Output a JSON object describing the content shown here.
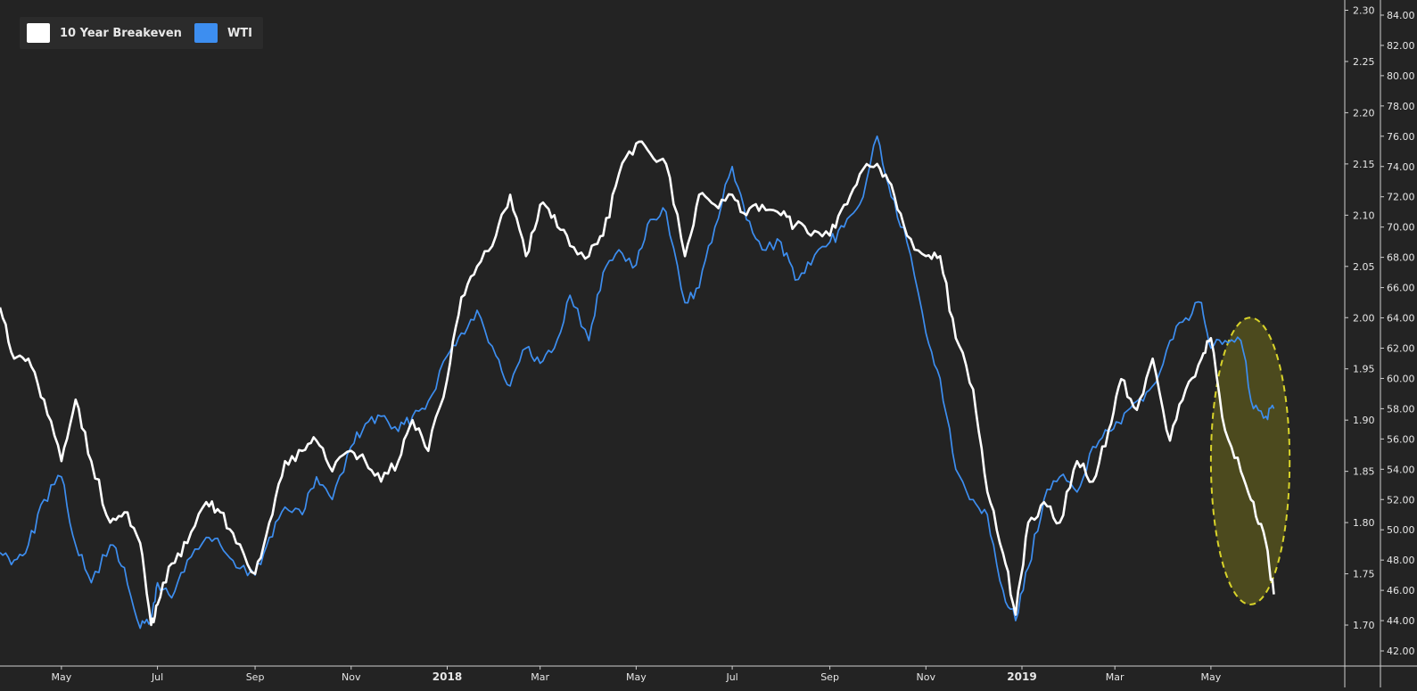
{
  "chart_data": {
    "type": "line",
    "legend": {
      "placement": "top-left",
      "items": [
        {
          "name": "10 Year Breakeven",
          "color": "#ffffff"
        },
        {
          "name": "WTI",
          "color": "#3d8ef0"
        }
      ]
    },
    "x_labels": [
      "May",
      "Jul",
      "Sep",
      "Nov",
      "2018",
      "Mar",
      "May",
      "Jul",
      "Sep",
      "Nov",
      "2019",
      "Mar",
      "May"
    ],
    "x_label_dates": [
      "2017-05-01",
      "2017-07-01",
      "2017-09-01",
      "2017-11-01",
      "2018-01-01",
      "2018-03-01",
      "2018-05-01",
      "2018-07-01",
      "2018-09-01",
      "2018-11-01",
      "2019-01-01",
      "2019-03-01",
      "2019-05-01"
    ],
    "x_range": [
      "2017-03-23",
      "2019-07-25"
    ],
    "left_axis": {
      "series": "10 Year Breakeven",
      "range": [
        1.66,
        2.31
      ],
      "ticks": [
        "1.70",
        "1.75",
        "1.80",
        "1.85",
        "1.90",
        "1.95",
        "2.00",
        "2.05",
        "2.10",
        "2.15",
        "2.20",
        "2.25",
        "2.30"
      ]
    },
    "right_axis": {
      "series": "WTI",
      "range": [
        41.0,
        85.0
      ],
      "ticks": [
        "42.00",
        "44.00",
        "46.00",
        "48.00",
        "50.00",
        "52.00",
        "54.00",
        "56.00",
        "58.00",
        "60.00",
        "62.00",
        "64.00",
        "66.00",
        "68.00",
        "70.00",
        "72.00",
        "74.00",
        "76.00",
        "78.00",
        "80.00",
        "82.00",
        "84.00"
      ]
    },
    "grid": false,
    "series": [
      {
        "name": "10 Year Breakeven",
        "color": "#ffffff",
        "x": [
          "2017-03-23",
          "2017-04-01",
          "2017-04-10",
          "2017-04-20",
          "2017-05-01",
          "2017-05-10",
          "2017-05-20",
          "2017-06-01",
          "2017-06-10",
          "2017-06-20",
          "2017-06-27",
          "2017-07-01",
          "2017-07-10",
          "2017-07-20",
          "2017-08-01",
          "2017-08-10",
          "2017-08-20",
          "2017-09-01",
          "2017-09-10",
          "2017-09-20",
          "2017-10-01",
          "2017-10-10",
          "2017-10-20",
          "2017-11-01",
          "2017-11-10",
          "2017-11-20",
          "2017-12-01",
          "2017-12-10",
          "2017-12-20",
          "2018-01-01",
          "2018-01-10",
          "2018-01-20",
          "2018-02-01",
          "2018-02-10",
          "2018-02-20",
          "2018-03-01",
          "2018-03-10",
          "2018-03-20",
          "2018-04-01",
          "2018-04-10",
          "2018-04-20",
          "2018-05-01",
          "2018-05-10",
          "2018-05-20",
          "2018-06-01",
          "2018-06-10",
          "2018-06-20",
          "2018-07-01",
          "2018-07-10",
          "2018-07-20",
          "2018-08-01",
          "2018-08-10",
          "2018-08-20",
          "2018-09-01",
          "2018-09-10",
          "2018-09-20",
          "2018-10-01",
          "2018-10-10",
          "2018-10-20",
          "2018-11-01",
          "2018-11-10",
          "2018-11-20",
          "2018-12-01",
          "2018-12-10",
          "2018-12-20",
          "2018-12-28",
          "2019-01-05",
          "2019-01-15",
          "2019-01-25",
          "2019-02-05",
          "2019-02-15",
          "2019-02-25",
          "2019-03-05",
          "2019-03-15",
          "2019-03-25",
          "2019-04-05",
          "2019-04-15",
          "2019-04-25",
          "2019-05-01",
          "2019-05-10",
          "2019-05-20",
          "2019-05-28",
          "2019-06-05",
          "2019-06-10"
        ],
        "values": [
          2.01,
          1.96,
          1.96,
          1.92,
          1.86,
          1.92,
          1.86,
          1.8,
          1.81,
          1.78,
          1.7,
          1.72,
          1.76,
          1.78,
          1.82,
          1.81,
          1.78,
          1.75,
          1.8,
          1.86,
          1.87,
          1.88,
          1.85,
          1.87,
          1.86,
          1.84,
          1.86,
          1.9,
          1.87,
          1.94,
          2.02,
          2.05,
          2.08,
          2.12,
          2.06,
          2.11,
          2.1,
          2.07,
          2.06,
          2.08,
          2.14,
          2.17,
          2.16,
          2.15,
          2.06,
          2.12,
          2.11,
          2.12,
          2.1,
          2.11,
          2.1,
          2.09,
          2.08,
          2.08,
          2.11,
          2.14,
          2.15,
          2.13,
          2.08,
          2.06,
          2.06,
          1.98,
          1.93,
          1.83,
          1.77,
          1.71,
          1.8,
          1.82,
          1.8,
          1.86,
          1.84,
          1.89,
          1.94,
          1.91,
          1.96,
          1.88,
          1.93,
          1.96,
          1.98,
          1.89,
          1.85,
          1.82,
          1.78,
          1.73
        ]
      },
      {
        "name": "WTI",
        "color": "#3d8ef0",
        "x": [
          "2017-03-23",
          "2017-04-01",
          "2017-04-10",
          "2017-04-20",
          "2017-05-01",
          "2017-05-10",
          "2017-05-20",
          "2017-06-01",
          "2017-06-10",
          "2017-06-20",
          "2017-06-27",
          "2017-07-01",
          "2017-07-10",
          "2017-07-20",
          "2017-08-01",
          "2017-08-10",
          "2017-08-20",
          "2017-09-01",
          "2017-09-10",
          "2017-09-20",
          "2017-10-01",
          "2017-10-10",
          "2017-10-20",
          "2017-11-01",
          "2017-11-10",
          "2017-11-20",
          "2017-12-01",
          "2017-12-10",
          "2017-12-20",
          "2018-01-01",
          "2018-01-10",
          "2018-01-20",
          "2018-02-01",
          "2018-02-10",
          "2018-02-20",
          "2018-03-01",
          "2018-03-10",
          "2018-03-20",
          "2018-04-01",
          "2018-04-10",
          "2018-04-20",
          "2018-05-01",
          "2018-05-10",
          "2018-05-20",
          "2018-06-01",
          "2018-06-10",
          "2018-06-20",
          "2018-07-01",
          "2018-07-10",
          "2018-07-20",
          "2018-08-01",
          "2018-08-10",
          "2018-08-20",
          "2018-09-01",
          "2018-09-10",
          "2018-09-20",
          "2018-10-01",
          "2018-10-10",
          "2018-10-20",
          "2018-11-01",
          "2018-11-10",
          "2018-11-20",
          "2018-12-01",
          "2018-12-10",
          "2018-12-20",
          "2018-12-28",
          "2019-01-05",
          "2019-01-15",
          "2019-01-25",
          "2019-02-05",
          "2019-02-15",
          "2019-02-25",
          "2019-03-05",
          "2019-03-15",
          "2019-03-25",
          "2019-04-05",
          "2019-04-15",
          "2019-04-25",
          "2019-05-01",
          "2019-05-10",
          "2019-05-20",
          "2019-05-28",
          "2019-06-05",
          "2019-06-10"
        ],
        "values": [
          48.5,
          48.0,
          49.0,
          52.0,
          53.5,
          49.0,
          46.5,
          49.0,
          47.5,
          43.5,
          44.0,
          46.5,
          45.5,
          48.0,
          49.5,
          49.0,
          47.5,
          47.0,
          49.5,
          51.5,
          51.0,
          53.5,
          52.0,
          55.5,
          57.0,
          57.5,
          56.5,
          57.5,
          58.5,
          61.5,
          63.0,
          64.5,
          61.5,
          59.5,
          62.0,
          61.0,
          62.0,
          65.5,
          62.5,
          67.0,
          68.5,
          67.5,
          70.5,
          71.0,
          65.0,
          66.0,
          70.0,
          74.0,
          70.5,
          68.5,
          69.0,
          66.5,
          67.5,
          69.0,
          70.0,
          71.5,
          76.0,
          72.0,
          69.0,
          63.0,
          60.0,
          54.0,
          52.0,
          51.0,
          46.0,
          44.0,
          47.5,
          52.0,
          53.5,
          52.5,
          55.5,
          56.5,
          57.0,
          58.5,
          59.5,
          62.5,
          64.0,
          65.0,
          62.0,
          62.5,
          62.5,
          58.0,
          57.5,
          58.0
        ]
      }
    ],
    "annotations": [
      {
        "type": "ellipse",
        "description": "highlight",
        "x_range": [
          "2019-05-01",
          "2019-06-20"
        ],
        "y_left_range": [
          1.72,
          2.0
        ],
        "fill": "#6f6b1c",
        "stroke": "#d8d32a",
        "style": "dashed"
      }
    ]
  }
}
